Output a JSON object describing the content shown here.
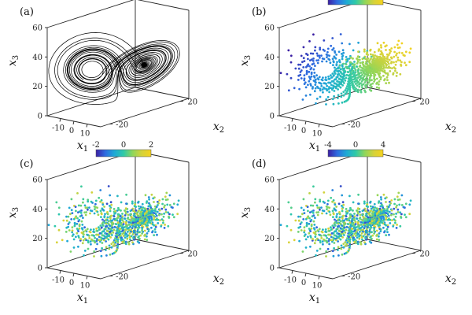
{
  "figure": {
    "colormap": [
      "#3b1fa3",
      "#2f6be0",
      "#1fa9d6",
      "#2fc9a8",
      "#8fd65a",
      "#d6d23a",
      "#f5d21e"
    ],
    "line_color": "#000000"
  },
  "chart_data": [
    {
      "panel": "(a)",
      "type": "line",
      "xlabel": "x1",
      "ylabel": "x2",
      "zlabel": "x3",
      "x_ticks": [
        "-10",
        "0",
        "10"
      ],
      "y_ticks": [
        "20",
        "-20"
      ],
      "z_ticks": [
        "0",
        "20",
        "40",
        "60"
      ],
      "xlim": [
        -20,
        20
      ],
      "ylim": [
        -25,
        25
      ],
      "zlim": [
        0,
        60
      ],
      "series": [
        {
          "mode": "lines",
          "color": "#000000",
          "points": []
        }
      ]
    },
    {
      "panel": "(b)",
      "type": "scatter",
      "xlabel": "x1",
      "ylabel": "x2",
      "zlabel": "x3",
      "x_ticks": [
        "-10",
        "0",
        "10"
      ],
      "y_ticks": [
        "20",
        "-20"
      ],
      "z_ticks": [
        "0",
        "20",
        "40",
        "60"
      ],
      "colorbar": {
        "ticks": [
          "-8",
          "0",
          "8"
        ],
        "range": [
          -8,
          8
        ]
      },
      "color_by": "x1"
    },
    {
      "panel": "(c)",
      "type": "scatter",
      "xlabel": "x1",
      "ylabel": "x2",
      "zlabel": "x3",
      "x_ticks": [
        "-10",
        "0",
        "10"
      ],
      "y_ticks": [
        "20",
        "-20"
      ],
      "z_ticks": [
        "0",
        "20",
        "40",
        "60"
      ],
      "colorbar": {
        "ticks": [
          "-2",
          "0",
          "2"
        ],
        "range": [
          -2,
          2
        ]
      },
      "color_by": "error"
    },
    {
      "panel": "(d)",
      "type": "scatter",
      "xlabel": "x1",
      "ylabel": "x2",
      "zlabel": "x3",
      "x_ticks": [
        "-10",
        "0",
        "10"
      ],
      "y_ticks": [
        "20",
        "-20"
      ],
      "z_ticks": [
        "0",
        "20",
        "40",
        "60"
      ],
      "colorbar": {
        "ticks": [
          "-4",
          "0",
          "4"
        ],
        "range": [
          -4,
          4
        ]
      },
      "color_by": "error"
    }
  ]
}
